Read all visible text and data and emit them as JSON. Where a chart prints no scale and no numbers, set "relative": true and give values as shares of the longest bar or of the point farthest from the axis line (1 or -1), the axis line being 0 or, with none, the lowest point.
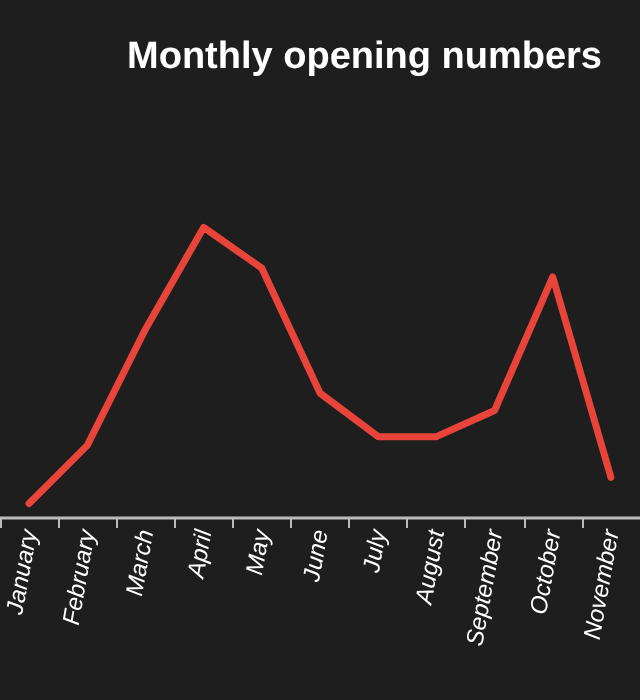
{
  "chart_data": {
    "type": "line",
    "title": "Monthly opening numbers",
    "relative": true,
    "categories": [
      "January",
      "February",
      "March",
      "April",
      "May",
      "June",
      "July",
      "August",
      "September",
      "October",
      "November"
    ],
    "series": [
      {
        "color": "#e8443a",
        "values": [
          0.05,
          0.25,
          0.65,
          1,
          0.86,
          0.43,
          0.28,
          0.28,
          0.37,
          0.83,
          0.14
        ]
      }
    ],
    "marker": "none",
    "line_style": "solid"
  }
}
